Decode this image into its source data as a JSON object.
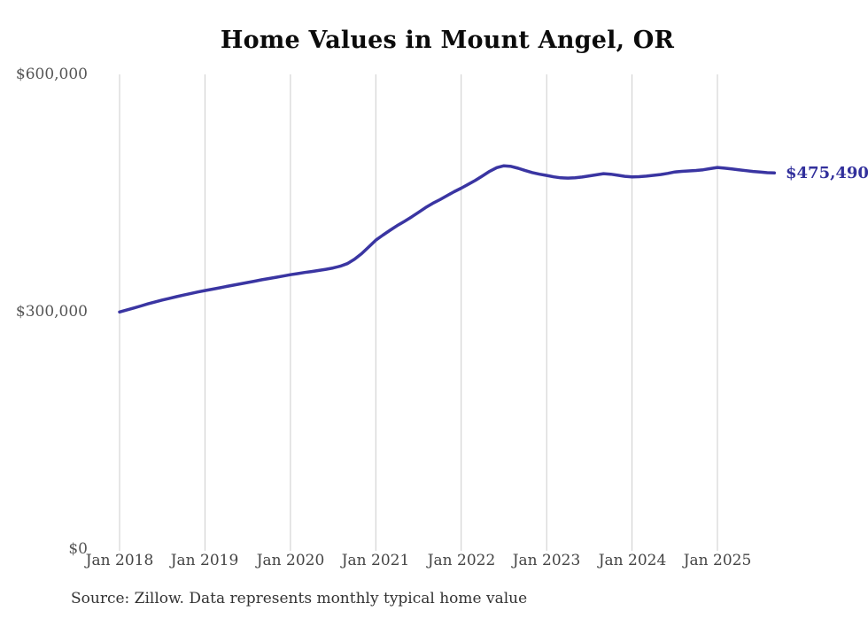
{
  "source": "Source: Zillow. Data represents monthly typical home value",
  "colors": {
    "line": "#3a35a2",
    "grid": "#cccccc",
    "axis_text": "#555555",
    "title_text": "#0b0b0b",
    "end_label_text": "#32309c",
    "background": "#ffffff"
  },
  "chart_data": {
    "type": "line",
    "title": "Home Values in Mount Angel, OR",
    "end_label": "$475,490",
    "end_value": 475490,
    "xlabel": "",
    "ylabel": "",
    "ylim": [
      0,
      600000
    ],
    "y_ticks": [
      600000,
      300000,
      0
    ],
    "y_tick_labels": [
      "$600,000",
      "$300,000",
      "$0"
    ],
    "x_tick_labels": [
      "Jan 2018",
      "Jan 2019",
      "Jan 2020",
      "Jan 2021",
      "Jan 2022",
      "Jan 2023",
      "Jan 2024",
      "Jan 2025"
    ],
    "x_start_month": "2018-01",
    "x_end_month": "2025-09",
    "grid": "vertical-only",
    "legend": "none",
    "series": [
      {
        "name": "Monthly typical home value",
        "monthly_values": [
          300000,
          302400,
          305000,
          307600,
          310200,
          312700,
          315000,
          317200,
          319300,
          321300,
          323300,
          325200,
          327000,
          328700,
          330400,
          332100,
          333800,
          335500,
          337200,
          338900,
          340600,
          342200,
          343800,
          345400,
          347000,
          348400,
          349800,
          351100,
          352400,
          353800,
          355500,
          357800,
          361000,
          366500,
          373500,
          382000,
          390600,
          397000,
          403200,
          409000,
          414200,
          419800,
          425800,
          431800,
          437200,
          441800,
          446800,
          451800,
          456300,
          461200,
          466200,
          471800,
          477600,
          482200,
          484600,
          483800,
          481400,
          478600,
          476000,
          474000,
          472400,
          470600,
          469400,
          469000,
          469400,
          470400,
          471800,
          473200,
          474600,
          474000,
          472600,
          471300,
          470500,
          470800,
          471500,
          472500,
          473500,
          475000,
          476800,
          477500,
          478100,
          478700,
          479600,
          481000,
          482500,
          481600,
          480600,
          479500,
          478400,
          477400,
          476700,
          475900,
          475490
        ]
      }
    ]
  }
}
